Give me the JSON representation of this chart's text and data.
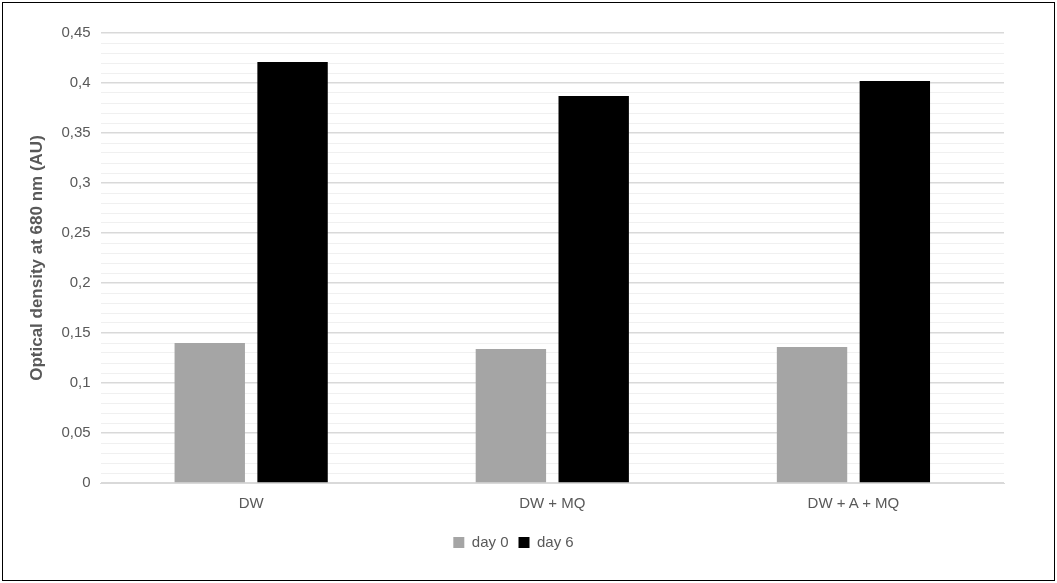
{
  "chart_data": {
    "type": "bar",
    "ylabel": "Optical density at 680 nm (AU)",
    "categories": [
      "DW",
      "DW + MQ",
      "DW + A + MQ"
    ],
    "series": [
      {
        "name": "day 0",
        "color": "#a5a5a5",
        "values": [
          0.14,
          0.134,
          0.136
        ]
      },
      {
        "name": "day 6",
        "color": "#000000",
        "values": [
          0.421,
          0.387,
          0.402
        ]
      }
    ],
    "ylim": [
      0,
      0.45
    ],
    "yticks": [
      0,
      {
        "value": 0.01,
        "label": null
      },
      {
        "value": 0.02,
        "label": null
      },
      {
        "value": 0.03,
        "label": null
      },
      {
        "value": 0.04,
        "label": null
      },
      {
        "value": 0.05,
        "label": "0,05"
      },
      {
        "value": 0.06,
        "label": null
      },
      {
        "value": 0.07,
        "label": null
      },
      {
        "value": 0.08,
        "label": null
      },
      {
        "value": 0.09,
        "label": null
      },
      {
        "value": 0.1,
        "label": "0,1"
      },
      {
        "value": 0.11,
        "label": null
      },
      {
        "value": 0.12,
        "label": null
      },
      {
        "value": 0.13,
        "label": null
      },
      {
        "value": 0.14,
        "label": null
      },
      {
        "value": 0.15,
        "label": "0,15"
      },
      {
        "value": 0.16,
        "label": null
      },
      {
        "value": 0.17,
        "label": null
      },
      {
        "value": 0.18,
        "label": null
      },
      {
        "value": 0.19,
        "label": null
      },
      {
        "value": 0.2,
        "label": "0,2"
      },
      {
        "value": 0.21,
        "label": null
      },
      {
        "value": 0.22,
        "label": null
      },
      {
        "value": 0.23,
        "label": null
      },
      {
        "value": 0.24,
        "label": null
      },
      {
        "value": 0.25,
        "label": "0,25"
      },
      {
        "value": 0.26,
        "label": null
      },
      {
        "value": 0.27,
        "label": null
      },
      {
        "value": 0.28,
        "label": null
      },
      {
        "value": 0.29,
        "label": null
      },
      {
        "value": 0.3,
        "label": "0,3"
      },
      {
        "value": 0.31,
        "label": null
      },
      {
        "value": 0.32,
        "label": null
      },
      {
        "value": 0.33,
        "label": null
      },
      {
        "value": 0.34,
        "label": null
      },
      {
        "value": 0.35,
        "label": "0,35"
      },
      {
        "value": 0.36,
        "label": null
      },
      {
        "value": 0.37,
        "label": null
      },
      {
        "value": 0.38,
        "label": null
      },
      {
        "value": 0.39,
        "label": null
      },
      {
        "value": 0.4,
        "label": "0,4"
      },
      {
        "value": 0.41,
        "label": null
      },
      {
        "value": 0.42,
        "label": null
      },
      {
        "value": 0.43,
        "label": null
      },
      {
        "value": 0.44,
        "label": null
      },
      {
        "value": 0.45,
        "label": "0,45"
      }
    ],
    "grid": "y",
    "legend": "bottom"
  }
}
